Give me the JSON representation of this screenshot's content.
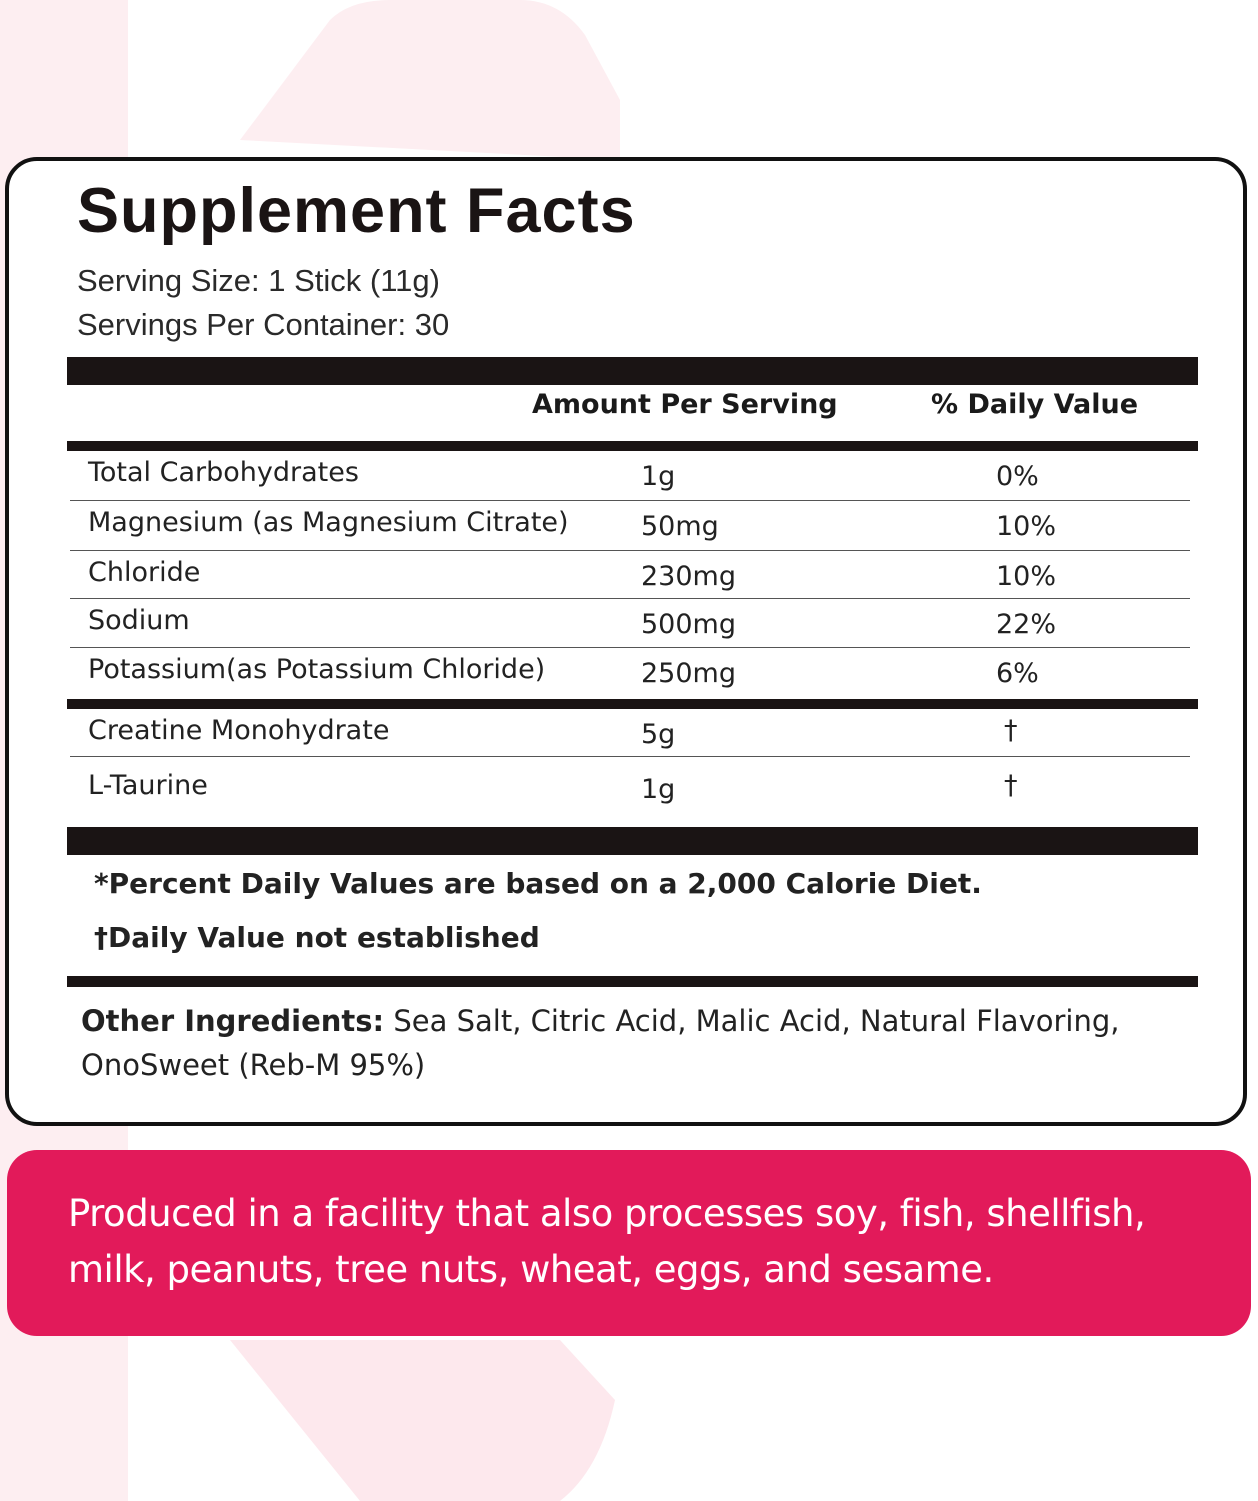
{
  "colors": {
    "accent": "#e21a5a",
    "bar": "#1a1414",
    "background_deco": "#fdebef"
  },
  "facts": {
    "title": "Supplement Facts",
    "serving_size": "Serving Size: 1 Stick (11g)",
    "servings_per_container": "Servings Per Container: 30",
    "col_amount": "Amount Per Serving",
    "col_dv": "% Daily Value",
    "rows": [
      {
        "name": "Total Carbohydrates",
        "amount": "1g",
        "dv": "0%"
      },
      {
        "name": "Magnesium (as Magnesium Citrate)",
        "amount": "50mg",
        "dv": "10%"
      },
      {
        "name": "Chloride",
        "amount": "230mg",
        "dv": "10%"
      },
      {
        "name": "Sodium",
        "amount": "500mg",
        "dv": "22%"
      },
      {
        "name": "Potassium(as Potassium Chloride)",
        "amount": "250mg",
        "dv": "6%"
      }
    ],
    "rows2": [
      {
        "name": "Creatine Monohydrate",
        "amount": "5g",
        "dv": "†"
      },
      {
        "name": "L-Taurine",
        "amount": "1g",
        "dv": "†"
      }
    ],
    "footnote_percent": "*Percent Daily Values are based on a 2,000 Calorie Diet.",
    "footnote_dagger": "†Daily Value not established",
    "other_label": "Other Ingredients:",
    "other_text": " Sea Salt, Citric Acid, Malic Acid, Natural Flavoring, OnoSweet (Reb-M 95%)"
  },
  "allergen": {
    "text": "Produced in a facility that also processes soy, fish, shellfish, milk, peanuts, tree nuts, wheat, eggs, and sesame."
  }
}
